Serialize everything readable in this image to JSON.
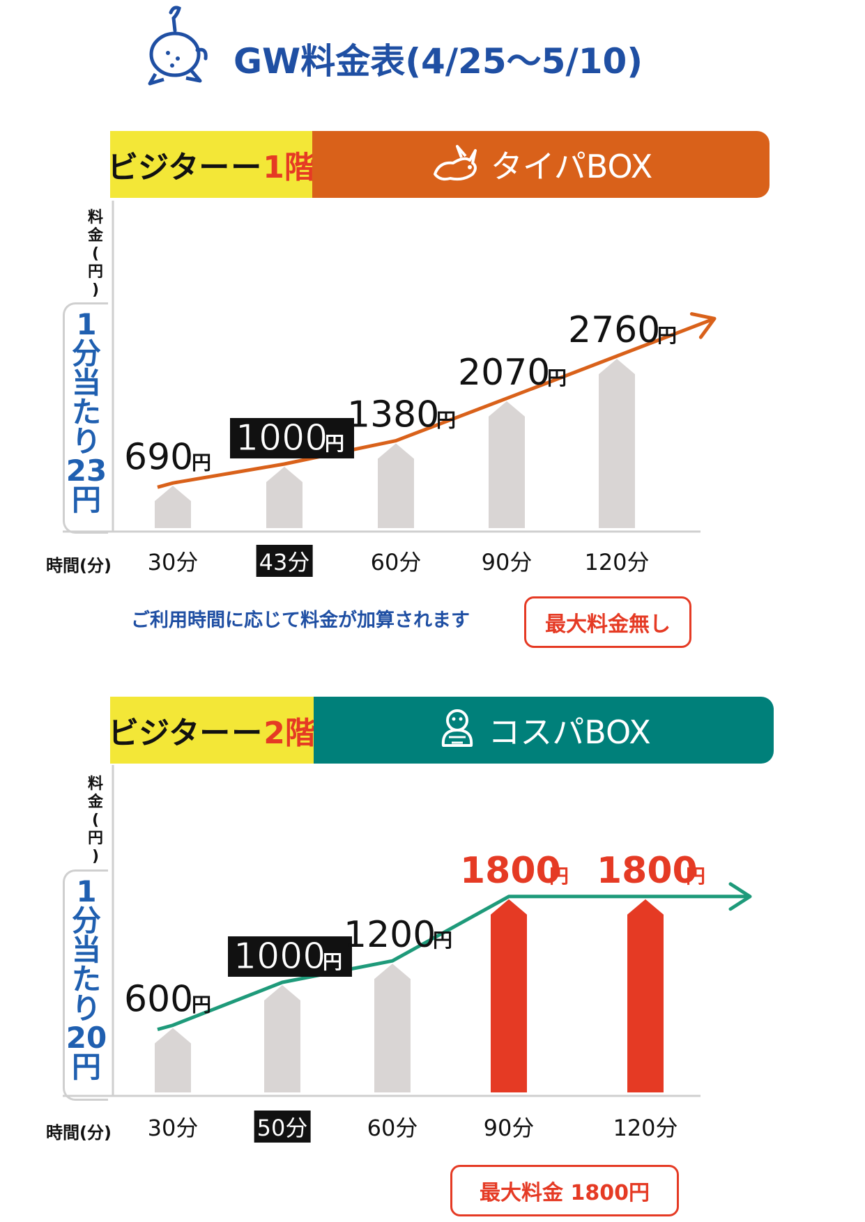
{
  "title": "GW料金表(4/25〜5/10)",
  "colors": {
    "accent_blue": "#1f4fa3",
    "orange": "#d9611a",
    "teal": "#00807a",
    "red": "#e53a24",
    "yellow": "#f3e737",
    "bar_gray": "#d9d5d4"
  },
  "sections": [
    {
      "floor_label": "ビジター",
      "floor_num": "1階",
      "plan_name": "タイパBOX",
      "plan_icon": "rabbit-icon",
      "ylabel_chars": [
        "料",
        "金",
        "(",
        "円",
        ")"
      ],
      "rate_chars": [
        "1",
        "分",
        "当",
        "た",
        "り",
        "23",
        "円"
      ],
      "time_label": "時間(分)",
      "note": "ご利用時間に応じて料金が加算されます",
      "badge": "最大料金無し"
    },
    {
      "floor_label": "ビジター",
      "floor_num": "2階",
      "plan_name": "コスパBOX",
      "plan_icon": "turtle-icon",
      "ylabel_chars": [
        "料",
        "金",
        "(",
        "円",
        ")"
      ],
      "rate_chars": [
        "1",
        "分",
        "当",
        "た",
        "り",
        "20",
        "円"
      ],
      "time_label": "時間(分)",
      "note": "",
      "badge": "最大料金 1800円"
    }
  ],
  "chart_data": [
    {
      "type": "bar",
      "title": "タイパBOX",
      "xlabel": "時間(分)",
      "ylabel": "料金(円)",
      "categories": [
        "30分",
        "43分",
        "60分",
        "90分",
        "120分"
      ],
      "values": [
        690,
        1000,
        1380,
        2070,
        2760
      ],
      "value_labels": [
        "690",
        "1000",
        "1380",
        "2070",
        "2760"
      ],
      "unit": "円",
      "highlighted_categories": [
        "43分"
      ],
      "trend_arrow": true
    },
    {
      "type": "bar",
      "title": "コスパBOX",
      "xlabel": "時間(分)",
      "ylabel": "料金(円)",
      "categories": [
        "30分",
        "50分",
        "60分",
        "90分",
        "120分"
      ],
      "values": [
        600,
        1000,
        1200,
        1800,
        1800
      ],
      "value_labels": [
        "600",
        "1000",
        "1200",
        "1800",
        "1800"
      ],
      "unit": "円",
      "highlighted_categories": [
        "50分"
      ],
      "capped_value": 1800,
      "trend_arrow": true
    }
  ]
}
